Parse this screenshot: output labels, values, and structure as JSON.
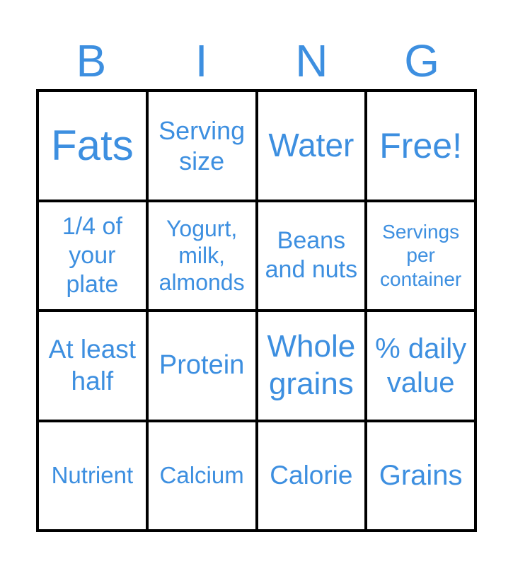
{
  "header": [
    "B",
    "I",
    "N",
    "G"
  ],
  "text_color": "#3d8fe0",
  "rows": [
    [
      {
        "text": "Fats",
        "size": 60
      },
      {
        "text": "Serving size",
        "size": 36
      },
      {
        "text": "Water",
        "size": 46
      },
      {
        "text": "Free!",
        "size": 50
      }
    ],
    [
      {
        "text": "1/4 of your plate",
        "size": 34
      },
      {
        "text": "Yogurt, milk, almonds",
        "size": 32
      },
      {
        "text": "Beans and nuts",
        "size": 34
      },
      {
        "text": "Servings per container",
        "size": 28
      }
    ],
    [
      {
        "text": "At least half",
        "size": 37
      },
      {
        "text": "Protein",
        "size": 38
      },
      {
        "text": "Whole grains",
        "size": 44
      },
      {
        "text": "% daily value",
        "size": 40
      }
    ],
    [
      {
        "text": "Nutrient",
        "size": 33
      },
      {
        "text": "Calcium",
        "size": 33
      },
      {
        "text": "Calorie",
        "size": 37
      },
      {
        "text": "Grains",
        "size": 40
      }
    ]
  ]
}
